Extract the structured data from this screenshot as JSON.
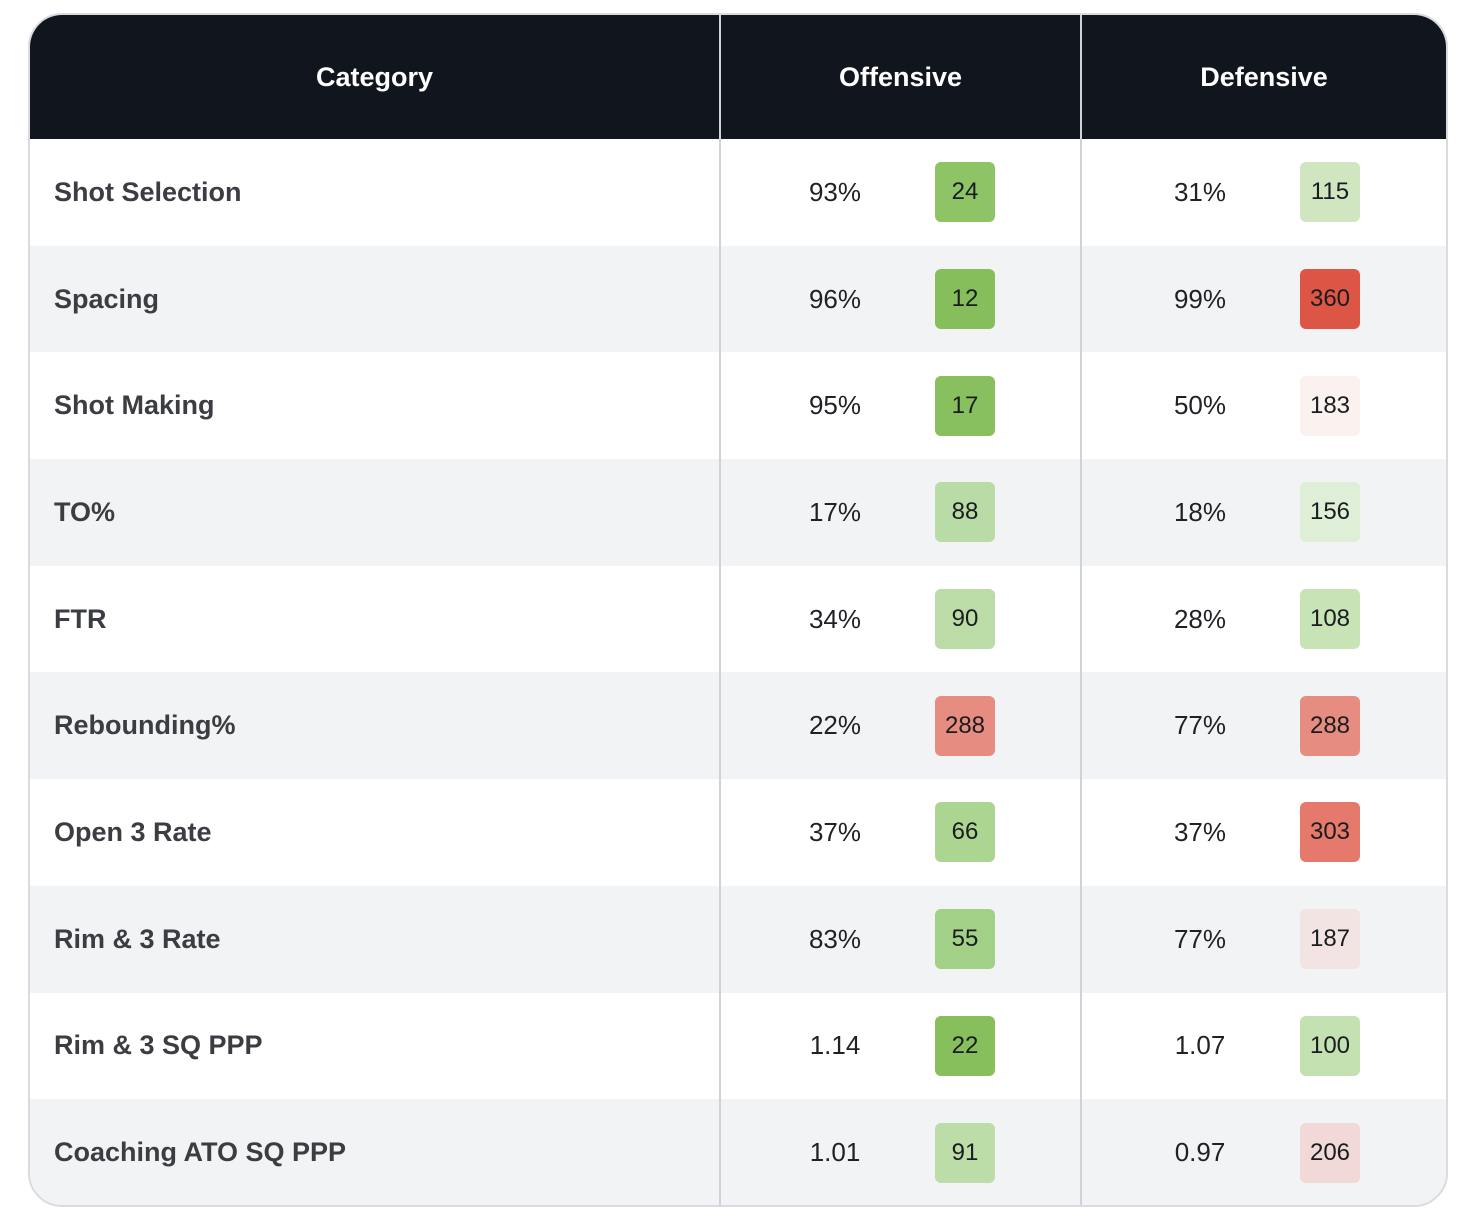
{
  "header": {
    "category": "Category",
    "offensive": "Offensive",
    "defensive": "Defensive"
  },
  "rows": [
    {
      "category": "Shot Selection",
      "off_value": "93%",
      "off_rank": "24",
      "off_color": "#8ec366",
      "def_value": "31%",
      "def_rank": "115",
      "def_color": "#cfe6c0"
    },
    {
      "category": "Spacing",
      "off_value": "96%",
      "off_rank": "12",
      "off_color": "#85be5a",
      "def_value": "99%",
      "def_rank": "360",
      "def_color": "#dd5544"
    },
    {
      "category": "Shot Making",
      "off_value": "95%",
      "off_rank": "17",
      "off_color": "#89c05f",
      "def_value": "50%",
      "def_rank": "183",
      "def_color": "#fbf1ef"
    },
    {
      "category": "TO%",
      "off_value": "17%",
      "off_rank": "88",
      "off_color": "#b9dba5",
      "def_value": "18%",
      "def_rank": "156",
      "def_color": "#dfeed7"
    },
    {
      "category": "FTR",
      "off_value": "34%",
      "off_rank": "90",
      "off_color": "#bbdca7",
      "def_value": "28%",
      "def_rank": "108",
      "def_color": "#c8e3b6"
    },
    {
      "category": "Rebounding%",
      "off_value": "22%",
      "off_rank": "288",
      "off_color": "#e68c80",
      "def_value": "77%",
      "def_rank": "288",
      "def_color": "#e68c80"
    },
    {
      "category": "Open 3 Rate",
      "off_value": "37%",
      "off_rank": "66",
      "off_color": "#acd592",
      "def_value": "37%",
      "def_rank": "303",
      "def_color": "#e4796c"
    },
    {
      "category": "Rim & 3 Rate",
      "off_value": "83%",
      "off_rank": "55",
      "off_color": "#a2d087",
      "def_value": "77%",
      "def_rank": "187",
      "def_color": "#f2e4e2"
    },
    {
      "category": "Rim & 3 SQ PPP",
      "off_value": "1.14",
      "off_rank": "22",
      "off_color": "#87bf5c",
      "def_value": "1.07",
      "def_rank": "100",
      "def_color": "#c4e1b1"
    },
    {
      "category": "Coaching ATO SQ PPP",
      "off_value": "1.01",
      "off_rank": "91",
      "off_color": "#bcdca8",
      "def_value": "0.97",
      "def_rank": "206",
      "def_color": "#f0d9d6"
    }
  ]
}
